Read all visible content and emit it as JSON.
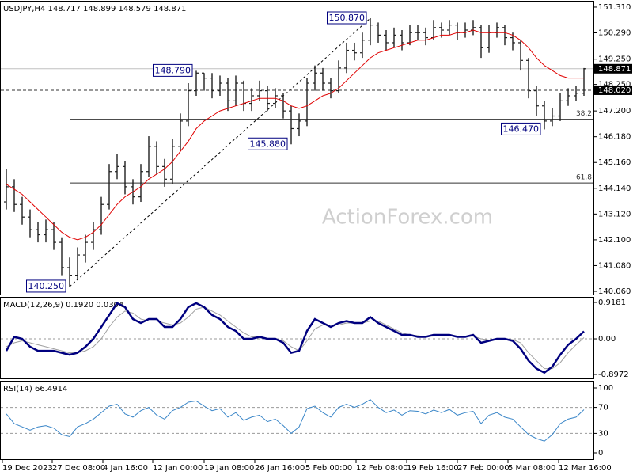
{
  "chart_data": [
    {
      "type": "ohlc",
      "title": "USDJPY,H4  148.717 148.899 148.579 148.871",
      "watermark": "ActionForex.com",
      "open": [
        143.6,
        144.2,
        143.5,
        143.0,
        142.5,
        142.3,
        142.5,
        142.0,
        141.0,
        140.7,
        141.5,
        142.0,
        142.5,
        143.5,
        144.8,
        145.0,
        144.2,
        143.8,
        144.8,
        145.8,
        145.0,
        144.5,
        145.8,
        146.8,
        148.0,
        148.7,
        148.5,
        148.0,
        148.3,
        147.6,
        148.3,
        147.5,
        147.8,
        148.0,
        147.5,
        147.8,
        147.2,
        146.5,
        146.8,
        148.3,
        148.7,
        148.3,
        148.0,
        148.9,
        149.6,
        149.5,
        150.0,
        150.6,
        150.2,
        149.9,
        150.2,
        149.9,
        150.3,
        150.3,
        150.1,
        150.5,
        150.4,
        150.6,
        150.3,
        150.4,
        150.5,
        149.7,
        150.3,
        150.5,
        150.1,
        149.9,
        149.2,
        148.0,
        147.4,
        146.8,
        147.0,
        147.6,
        147.8,
        147.9
      ],
      "high": [
        144.9,
        144.5,
        143.8,
        143.3,
        142.8,
        142.9,
        142.8,
        142.2,
        141.4,
        141.8,
        142.3,
        142.8,
        143.8,
        145.1,
        145.5,
        145.2,
        144.5,
        145.1,
        146.2,
        146.0,
        145.3,
        146.1,
        147.1,
        148.3,
        148.79,
        148.7,
        148.7,
        148.6,
        148.5,
        148.6,
        148.4,
        148.1,
        148.4,
        148.2,
        148.1,
        147.9,
        147.4,
        147.1,
        148.5,
        149.0,
        148.9,
        148.5,
        149.2,
        149.9,
        149.9,
        150.3,
        150.87,
        150.7,
        150.4,
        150.5,
        150.4,
        150.6,
        150.6,
        150.5,
        150.8,
        150.7,
        150.8,
        150.7,
        150.7,
        150.8,
        150.6,
        150.6,
        150.7,
        150.6,
        150.3,
        150.0,
        149.3,
        148.2,
        147.6,
        147.3,
        147.9,
        148.1,
        148.2,
        148.899
      ],
      "low": [
        143.3,
        143.2,
        142.7,
        142.2,
        142.0,
        142.0,
        141.7,
        140.7,
        140.25,
        140.5,
        141.2,
        141.7,
        142.3,
        143.3,
        144.5,
        143.9,
        143.5,
        143.6,
        144.6,
        144.7,
        144.2,
        144.3,
        145.6,
        146.6,
        147.8,
        148.0,
        147.7,
        147.8,
        147.2,
        147.4,
        147.2,
        147.2,
        147.6,
        147.2,
        147.3,
        146.9,
        145.88,
        146.2,
        146.6,
        148.0,
        148.0,
        147.7,
        147.9,
        148.7,
        149.2,
        149.3,
        149.8,
        149.9,
        149.6,
        149.7,
        149.6,
        149.8,
        150.0,
        149.8,
        150.0,
        150.1,
        150.2,
        150.0,
        150.1,
        150.2,
        149.3,
        149.5,
        150.1,
        149.8,
        149.6,
        148.8,
        147.7,
        147.0,
        146.47,
        146.6,
        146.8,
        147.4,
        147.6,
        147.8
      ],
      "close": [
        144.2,
        143.5,
        143.0,
        142.5,
        142.3,
        142.5,
        142.0,
        141.0,
        140.7,
        141.5,
        142.0,
        142.5,
        143.5,
        144.8,
        145.0,
        144.2,
        143.8,
        144.8,
        145.8,
        145.0,
        144.5,
        145.8,
        146.8,
        148.0,
        148.7,
        148.5,
        148.0,
        148.3,
        147.6,
        148.3,
        147.5,
        147.8,
        148.0,
        147.5,
        147.8,
        147.2,
        146.5,
        146.8,
        148.3,
        148.7,
        148.3,
        148.0,
        148.9,
        149.6,
        149.5,
        150.0,
        150.6,
        150.2,
        149.9,
        150.2,
        149.9,
        150.3,
        150.3,
        150.1,
        150.5,
        150.4,
        150.6,
        150.3,
        150.4,
        150.5,
        149.7,
        150.3,
        150.5,
        150.1,
        149.9,
        149.2,
        148.0,
        147.4,
        146.8,
        147.0,
        147.6,
        147.8,
        147.9,
        148.871
      ],
      "color": "#1e1e1e",
      "ma": {
        "color": "#e00000",
        "values": [
          144.3,
          144.1,
          143.9,
          143.6,
          143.3,
          143.0,
          142.7,
          142.4,
          142.2,
          142.1,
          142.2,
          142.4,
          142.7,
          143.1,
          143.5,
          143.8,
          144.0,
          144.2,
          144.5,
          144.7,
          144.9,
          145.2,
          145.6,
          146.0,
          146.5,
          146.8,
          147.0,
          147.2,
          147.3,
          147.4,
          147.5,
          147.6,
          147.7,
          147.7,
          147.7,
          147.6,
          147.4,
          147.3,
          147.4,
          147.6,
          147.8,
          147.9,
          148.1,
          148.4,
          148.7,
          149.0,
          149.3,
          149.5,
          149.6,
          149.7,
          149.8,
          149.9,
          150.0,
          150.0,
          150.1,
          150.2,
          150.2,
          150.3,
          150.3,
          150.4,
          150.3,
          150.3,
          150.3,
          150.3,
          150.2,
          150.0,
          149.7,
          149.3,
          149.0,
          148.8,
          148.6,
          148.5,
          148.5,
          148.5
        ]
      },
      "xlim": [
        0,
        74
      ],
      "xticks": [
        {
          "value": 0,
          "label": "19 Dec 2023"
        },
        {
          "value": 6.3,
          "label": "27 Dec 08:00"
        },
        {
          "value": 12.7,
          "label": "4 Jan 16:00"
        },
        {
          "value": 19,
          "label": "12 Jan 00:00"
        },
        {
          "value": 25.5,
          "label": "19 Jan 08:00"
        },
        {
          "value": 31.9,
          "label": "26 Jan 16:00"
        },
        {
          "value": 38.3,
          "label": "5 Feb 00:00"
        },
        {
          "value": 44.7,
          "label": "12 Feb 08:00"
        },
        {
          "value": 51.1,
          "label": "19 Feb 16:00"
        },
        {
          "value": 57.5,
          "label": "27 Feb 00:00"
        },
        {
          "value": 63.9,
          "label": "5 Mar 08:00"
        },
        {
          "value": 70.3,
          "label": "12 Mar 16:00"
        }
      ],
      "ylim": [
        139.935,
        151.528
      ],
      "yticks": [
        {
          "value": 151.31,
          "label": "151.310"
        },
        {
          "value": 150.29,
          "label": "150.290"
        },
        {
          "value": 149.25,
          "label": "149.250"
        },
        {
          "value": 148.25,
          "label": "148.250"
        },
        {
          "value": 147.2,
          "label": "147.200"
        },
        {
          "value": 146.18,
          "label": "146.180"
        },
        {
          "value": 145.16,
          "label": "145.160"
        },
        {
          "value": 144.14,
          "label": "144.140"
        },
        {
          "value": 143.12,
          "label": "143.120"
        },
        {
          "value": 142.1,
          "label": "142.100"
        },
        {
          "value": 141.08,
          "label": "141.080"
        },
        {
          "value": 140.06,
          "label": "140.060"
        }
      ],
      "annotations": [
        {
          "text": "150.870",
          "x": 46,
          "y": 150.87
        },
        {
          "text": "148.790",
          "x": 24,
          "y": 148.79
        },
        {
          "text": "145.880",
          "x": 36,
          "y": 145.88
        },
        {
          "text": "146.470",
          "x": 68,
          "y": 146.47
        },
        {
          "text": "140.250",
          "x": 8,
          "y": 140.25
        }
      ],
      "hlines": [
        {
          "y": 148.871,
          "label": "148.871",
          "style": "solid",
          "color": "#c0c0c0"
        },
        {
          "y": 148.02,
          "label": "148.020",
          "style": "dashed",
          "color": "#333333"
        }
      ],
      "fib": [
        {
          "y": 146.87,
          "label": "38.2",
          "x0": 8
        },
        {
          "y": 144.35,
          "label": "61.8",
          "x0": 8
        }
      ],
      "trendline": {
        "x": [
          8,
          46
        ],
        "y": [
          140.25,
          150.87
        ]
      }
    },
    {
      "type": "line",
      "title": "MACD(12,26,9) 0.1920 0.0304",
      "series": [
        {
          "color": "#a0a0a0",
          "values": [
            -0.2,
            -0.1,
            -0.05,
            -0.1,
            -0.15,
            -0.2,
            -0.25,
            -0.3,
            -0.35,
            -0.35,
            -0.3,
            -0.2,
            0.0,
            0.3,
            0.55,
            0.7,
            0.65,
            0.5,
            0.45,
            0.45,
            0.4,
            0.35,
            0.4,
            0.55,
            0.75,
            0.8,
            0.7,
            0.6,
            0.45,
            0.3,
            0.15,
            0.05,
            0.05,
            0.0,
            0.0,
            -0.05,
            -0.2,
            -0.3,
            -0.05,
            0.25,
            0.35,
            0.35,
            0.35,
            0.4,
            0.4,
            0.4,
            0.45,
            0.45,
            0.35,
            0.25,
            0.15,
            0.1,
            0.08,
            0.05,
            0.07,
            0.08,
            0.1,
            0.07,
            0.05,
            0.07,
            0.0,
            -0.03,
            -0.02,
            0.0,
            -0.02,
            -0.1,
            -0.35,
            -0.55,
            -0.75,
            -0.75,
            -0.6,
            -0.35,
            -0.15,
            0.03
          ]
        },
        {
          "color": "#00007f",
          "values": [
            -0.3,
            0.05,
            0.0,
            -0.2,
            -0.3,
            -0.3,
            -0.3,
            -0.35,
            -0.4,
            -0.35,
            -0.2,
            0.0,
            0.3,
            0.6,
            0.9,
            0.8,
            0.5,
            0.4,
            0.5,
            0.5,
            0.3,
            0.3,
            0.5,
            0.8,
            0.9,
            0.8,
            0.6,
            0.5,
            0.3,
            0.2,
            0.0,
            0.0,
            0.05,
            0.0,
            0.0,
            -0.1,
            -0.35,
            -0.3,
            0.2,
            0.5,
            0.4,
            0.3,
            0.4,
            0.45,
            0.4,
            0.4,
            0.55,
            0.4,
            0.3,
            0.2,
            0.1,
            0.1,
            0.05,
            0.05,
            0.1,
            0.1,
            0.1,
            0.05,
            0.05,
            0.1,
            -0.1,
            -0.05,
            0.0,
            0.0,
            -0.05,
            -0.25,
            -0.55,
            -0.75,
            -0.85,
            -0.7,
            -0.4,
            -0.15,
            0.0,
            0.19
          ]
        }
      ],
      "ylim": [
        -0.997,
        1.0378
      ],
      "yticks": [
        0.9181,
        {
          "value": 0,
          "label": "0.00"
        },
        -0.8972
      ],
      "levels": [
        0
      ]
    },
    {
      "type": "line",
      "title": "RSI(14) 66.4914",
      "series": [
        {
          "color": "#3a86c8",
          "values": [
            60,
            45,
            40,
            35,
            40,
            42,
            38,
            28,
            25,
            40,
            45,
            52,
            62,
            72,
            75,
            60,
            55,
            65,
            70,
            58,
            52,
            65,
            70,
            78,
            80,
            72,
            65,
            68,
            55,
            62,
            50,
            55,
            58,
            48,
            52,
            42,
            30,
            40,
            68,
            72,
            62,
            55,
            70,
            75,
            70,
            75,
            82,
            70,
            62,
            66,
            58,
            65,
            64,
            60,
            66,
            62,
            67,
            58,
            62,
            64,
            45,
            58,
            62,
            55,
            52,
            40,
            28,
            22,
            18,
            28,
            45,
            52,
            55,
            66.49
          ]
        }
      ],
      "ylim": [
        -9.76,
        109.76
      ],
      "yticks": [
        100,
        70,
        30,
        0
      ],
      "levels": [
        70,
        30
      ]
    }
  ]
}
